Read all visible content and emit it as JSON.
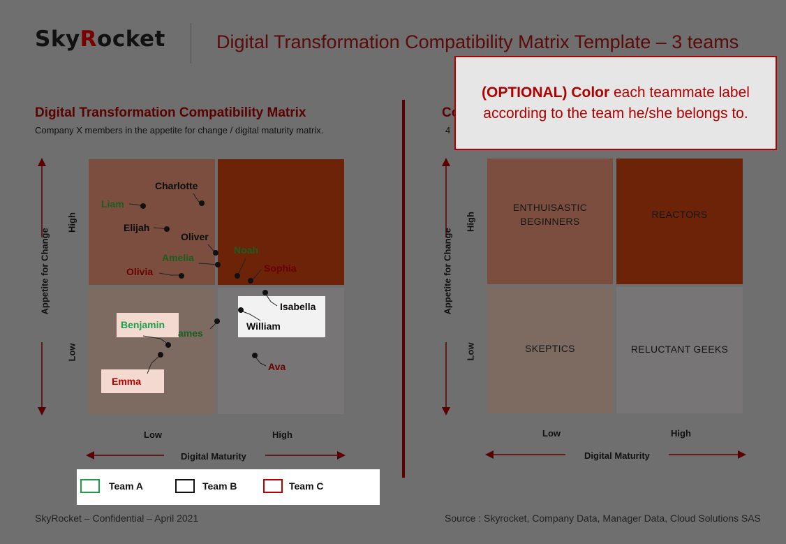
{
  "header": {
    "logo_text": "SkyRocket",
    "title": "Digital Transformation Compatibility Matrix Template – 3 teams"
  },
  "left_panel": {
    "title": "Digital Transformation Compatibility Matrix",
    "subtitle": "Company X members in the appetite for change / digital maturity matrix.",
    "y_axis_label": "Appetite for Change",
    "x_axis_label": "Digital Maturity",
    "y_high": "High",
    "y_low": "Low",
    "x_low": "Low",
    "x_high": "High"
  },
  "right_panel": {
    "title_visible": "Co",
    "subtitle_visible": "4",
    "y_axis_label": "Appetite for Change",
    "x_axis_label": "Digital Maturity",
    "y_high": "High",
    "y_low": "Low",
    "x_low": "Low",
    "x_high": "High",
    "quadrants": {
      "top_left": "ENTHUISASTIC BEGINNERS",
      "top_right": "REACTORS",
      "bottom_left": "SKEPTICS",
      "bottom_right": "RELUCTANT GEEKS"
    }
  },
  "people": [
    {
      "name": "Charlotte",
      "team": "B"
    },
    {
      "name": "Liam",
      "team": "A"
    },
    {
      "name": "Elijah",
      "team": "B"
    },
    {
      "name": "Oliver",
      "team": "B"
    },
    {
      "name": "Noah",
      "team": "A"
    },
    {
      "name": "Amelia",
      "team": "A"
    },
    {
      "name": "Sophia",
      "team": "C"
    },
    {
      "name": "Olivia",
      "team": "C"
    },
    {
      "name": "Isabella",
      "team": "B"
    },
    {
      "name": "Benjamin",
      "team": "A"
    },
    {
      "name": "James",
      "team": "A"
    },
    {
      "name": "William",
      "team": "B"
    },
    {
      "name": "Ava",
      "team": "C"
    },
    {
      "name": "Emma",
      "team": "C"
    }
  ],
  "callout": {
    "strong": "(OPTIONAL) Color",
    "text": " each teammate label according to the team he/she belongs to."
  },
  "legend": {
    "items": [
      {
        "label": "Team A",
        "color": "#1e9e4a"
      },
      {
        "label": "Team B",
        "color": "#111111"
      },
      {
        "label": "Team C",
        "color": "#c00000"
      }
    ]
  },
  "footer": {
    "left": "SkyRocket – Confidential – April 2021",
    "right": "Source : Skyrocket, Company Data, Manager Data, Cloud Solutions SAS"
  },
  "colors": {
    "background": "#6f6f6f",
    "brand_dark_red": "#5a0000",
    "callout_red": "#b00000",
    "team_a": "#1b5e20",
    "team_b": "#0b0b0b",
    "team_c": "#6a0000"
  }
}
